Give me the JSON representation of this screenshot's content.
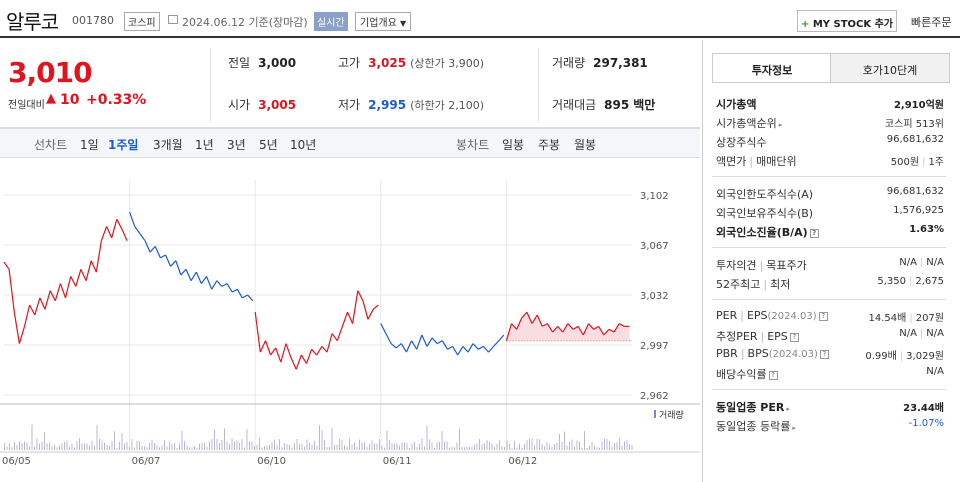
{
  "header": {
    "name": "알루코",
    "code": "001780",
    "market": "코스피",
    "date": "2024.06.12 기준(장마감)",
    "realtime": "실시간",
    "company_info": "기업개요",
    "mystock": "MY STOCK 추가",
    "quick_order": "빠른주문"
  },
  "price": {
    "current": "3,010",
    "change_label": "전일대비",
    "change_amount": "10",
    "change_pct": "+0.33%",
    "prev_label": "전일",
    "prev": "3,000",
    "open_label": "시가",
    "open": "3,005",
    "high_label": "고가",
    "high": "3,025",
    "upper_limit": "(상한가 3,900)",
    "low_label": "저가",
    "low": "2,995",
    "lower_limit": "(하한가 2,100)",
    "volume_label": "거래량",
    "volume": "297,381",
    "amount_label": "거래대금",
    "amount": "895",
    "amount_unit": "백만"
  },
  "tabs": {
    "line_label": "선차트",
    "line": [
      "1일",
      "1주일",
      "3개월",
      "1년",
      "3년",
      "5년",
      "10년"
    ],
    "active": "1주일",
    "candle_label": "봉차트",
    "candle": [
      "일봉",
      "주봉",
      "월봉"
    ]
  },
  "chart_data": {
    "type": "line",
    "x_labels": [
      "06/05",
      "06/07",
      "06/10",
      "06/11",
      "06/12"
    ],
    "y_ticks": [
      3102,
      3067,
      3032,
      2997,
      2962
    ],
    "ylim": [
      2962,
      3102
    ],
    "prev_close": 3000,
    "volume_legend": "거래량",
    "series": [
      {
        "day": "06/05",
        "values": [
          3055,
          3050,
          3020,
          2998,
          3010,
          3025,
          3018,
          3030,
          3022,
          3035,
          3028,
          3040,
          3030,
          3045,
          3038,
          3050,
          3042,
          3056,
          3048,
          3070,
          3080,
          3072,
          3085,
          3078,
          3070
        ]
      },
      {
        "day": "06/07",
        "values": [
          3090,
          3080,
          3075,
          3070,
          3062,
          3066,
          3058,
          3060,
          3052,
          3056,
          3046,
          3050,
          3042,
          3048,
          3040,
          3045,
          3036,
          3042,
          3038,
          3040,
          3034,
          3036,
          3030,
          3032,
          3028
        ]
      },
      {
        "day": "06/10",
        "values": [
          3020,
          2992,
          3000,
          2990,
          2995,
          2985,
          2998,
          2988,
          2980,
          2990,
          2984,
          2994,
          2990,
          2996,
          2992,
          3005,
          3000,
          3010,
          3020,
          3012,
          3035,
          3028,
          3015,
          3022,
          3025
        ]
      },
      {
        "day": "06/11",
        "values": [
          3012,
          3005,
          2998,
          2995,
          2998,
          2992,
          3000,
          2994,
          3004,
          2996,
          3002,
          2998,
          3000,
          2994,
          2996,
          2990,
          2996,
          2992,
          2998,
          2994,
          2996,
          2992,
          2996,
          3000,
          3004
        ]
      },
      {
        "day": "06/12",
        "values": [
          3000,
          3012,
          3008,
          3016,
          3020,
          3012,
          3018,
          3010,
          3012,
          3006,
          3010,
          3006,
          3012,
          3008,
          3010,
          3004,
          3012,
          3008,
          3010,
          3004,
          3008,
          3006,
          3012,
          3010,
          3010
        ]
      }
    ],
    "colors": {
      "up": "#e0141e",
      "down": "#1a5bd0",
      "fill": "#f9d4d8"
    }
  },
  "side": {
    "tab_active": "투자정보",
    "tab_other": "호가10단계",
    "market_cap_label": "시가총액",
    "market_cap": "2,910억원",
    "cap_rank_label": "시가총액순위",
    "cap_rank": "코스피 513위",
    "shares_label": "상장주식수",
    "shares": "96,681,632",
    "par_label": "액면가",
    "unit_label": "매매단위",
    "par": "500원",
    "unit": "1주",
    "foreign_limit_label": "외국인한도주식수(A)",
    "foreign_limit": "96,681,632",
    "foreign_hold_label": "외국인보유주식수(B)",
    "foreign_hold": "1,576,925",
    "foreign_ratio_label": "외국인소진율(B/A)",
    "foreign_ratio": "1.63%",
    "opinion_label": "투자의견",
    "target_label": "목표주가",
    "opinion": "N/A",
    "target": "N/A",
    "w52_high_label": "52주최고",
    "w52_low_label": "최저",
    "w52_high": "5,350",
    "w52_low": "2,675",
    "per_label": "PER",
    "eps_label": "EPS",
    "per_period": "(2024.03)",
    "per": "14.54배",
    "eps": "207원",
    "est_per_label": "추정PER",
    "est_eps_label": "EPS",
    "est_per": "N/A",
    "est_eps": "N/A",
    "pbr_label": "PBR",
    "bps_label": "BPS",
    "pbr_period": "(2024.03)",
    "pbr": "0.99배",
    "bps": "3,029원",
    "div_label": "배당수익률",
    "div": "N/A",
    "peer_per_label": "동일업종 PER",
    "peer_per": "23.44배",
    "peer_rate_label": "동일업종 등락률",
    "peer_rate": "-1.07%"
  }
}
